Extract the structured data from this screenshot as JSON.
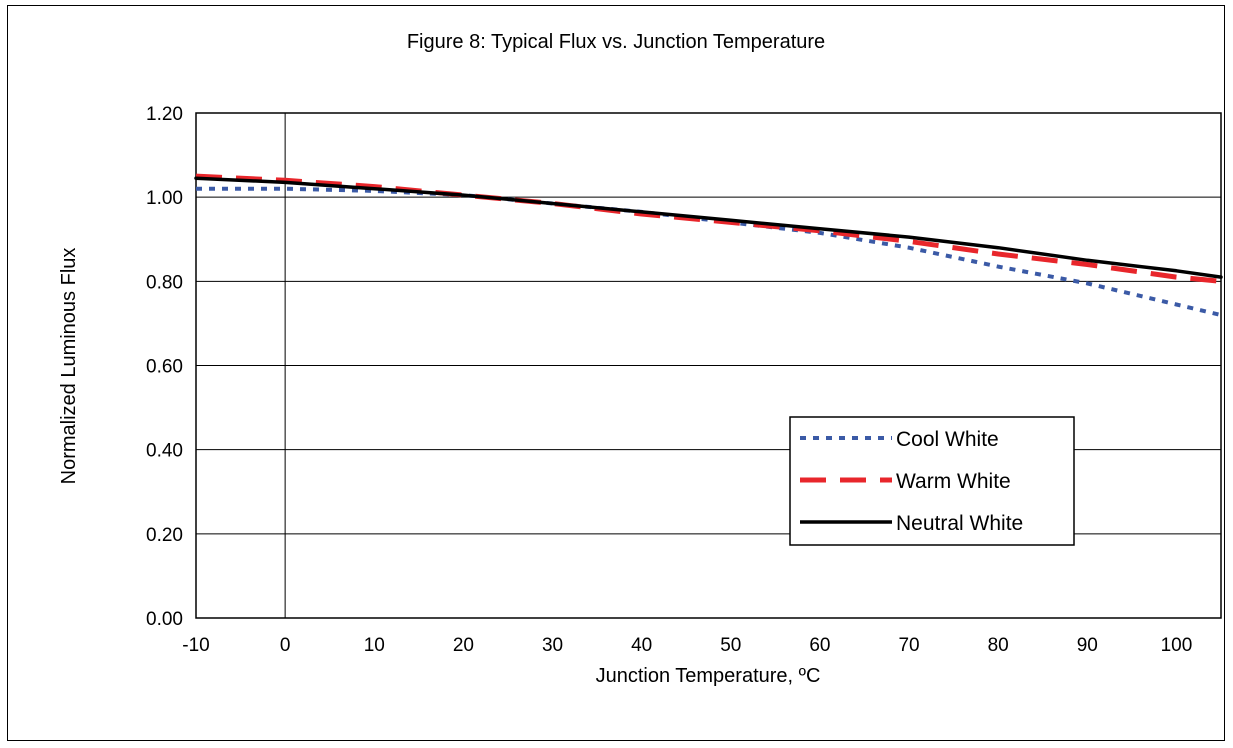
{
  "chart_data": {
    "type": "line",
    "title": "Figure 8:  Typical Flux vs. Junction Temperature",
    "xlabel": "Junction Temperature, ºC",
    "ylabel": "Normalized Luminous Flux",
    "xlim": [
      -10,
      105
    ],
    "ylim": [
      0,
      1.2
    ],
    "x_ticks": [
      "-10",
      "0",
      "10",
      "20",
      "30",
      "40",
      "50",
      "60",
      "70",
      "80",
      "90",
      "100"
    ],
    "y_ticks": [
      "0.00",
      "0.20",
      "0.40",
      "0.60",
      "0.80",
      "1.00",
      "1.20"
    ],
    "grid": "horizontal",
    "legend_position": "lower-right",
    "series": [
      {
        "name": "Cool White",
        "style": "dotted",
        "color": "#3b5aa6",
        "x": [
          -10,
          0,
          10,
          20,
          25,
          30,
          40,
          50,
          60,
          70,
          80,
          90,
          100,
          105
        ],
        "y": [
          1.02,
          1.02,
          1.015,
          1.005,
          0.995,
          0.985,
          0.965,
          0.94,
          0.915,
          0.88,
          0.835,
          0.795,
          0.745,
          0.72
        ]
      },
      {
        "name": "Warm White",
        "style": "dashed",
        "color": "#e8262b",
        "x": [
          -10,
          0,
          10,
          20,
          25,
          30,
          40,
          50,
          60,
          70,
          80,
          90,
          100,
          105
        ],
        "y": [
          1.05,
          1.04,
          1.025,
          1.005,
          0.995,
          0.985,
          0.96,
          0.94,
          0.92,
          0.895,
          0.865,
          0.84,
          0.81,
          0.8
        ]
      },
      {
        "name": "Neutral White",
        "style": "solid",
        "color": "#000000",
        "x": [
          -10,
          0,
          10,
          20,
          25,
          30,
          40,
          50,
          60,
          70,
          80,
          90,
          100,
          105
        ],
        "y": [
          1.045,
          1.035,
          1.02,
          1.005,
          0.995,
          0.985,
          0.965,
          0.945,
          0.925,
          0.905,
          0.88,
          0.85,
          0.825,
          0.81
        ]
      }
    ]
  }
}
